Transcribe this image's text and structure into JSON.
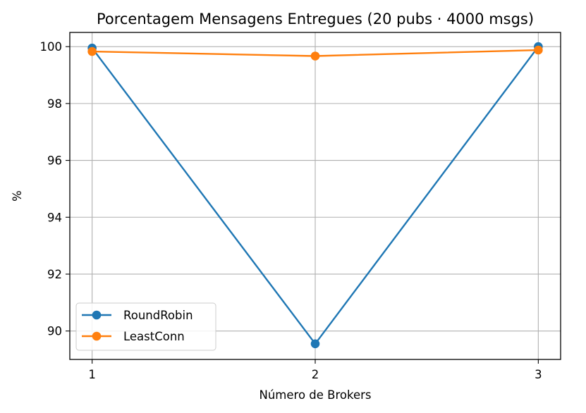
{
  "chart_data": {
    "type": "line",
    "title": "Porcentagem Mensagens Entregues (20 pubs · 4000 msgs)",
    "xlabel": "Número de Brokers",
    "ylabel": "%",
    "x": [
      1,
      2,
      3
    ],
    "x_ticks": [
      "1",
      "2",
      "3"
    ],
    "y_ticks": [
      "90",
      "92",
      "94",
      "96",
      "98",
      "100"
    ],
    "xlim": [
      0.9,
      3.1
    ],
    "ylim": [
      89.0,
      100.5
    ],
    "grid": true,
    "legend_position": "lower-left",
    "series": [
      {
        "name": "RoundRobin",
        "color": "#1f77b4",
        "marker": "circle",
        "values": [
          99.95,
          89.55,
          100.0
        ]
      },
      {
        "name": "LeastConn",
        "color": "#ff7f0e",
        "marker": "circle",
        "values": [
          99.83,
          99.67,
          99.88
        ]
      }
    ]
  }
}
